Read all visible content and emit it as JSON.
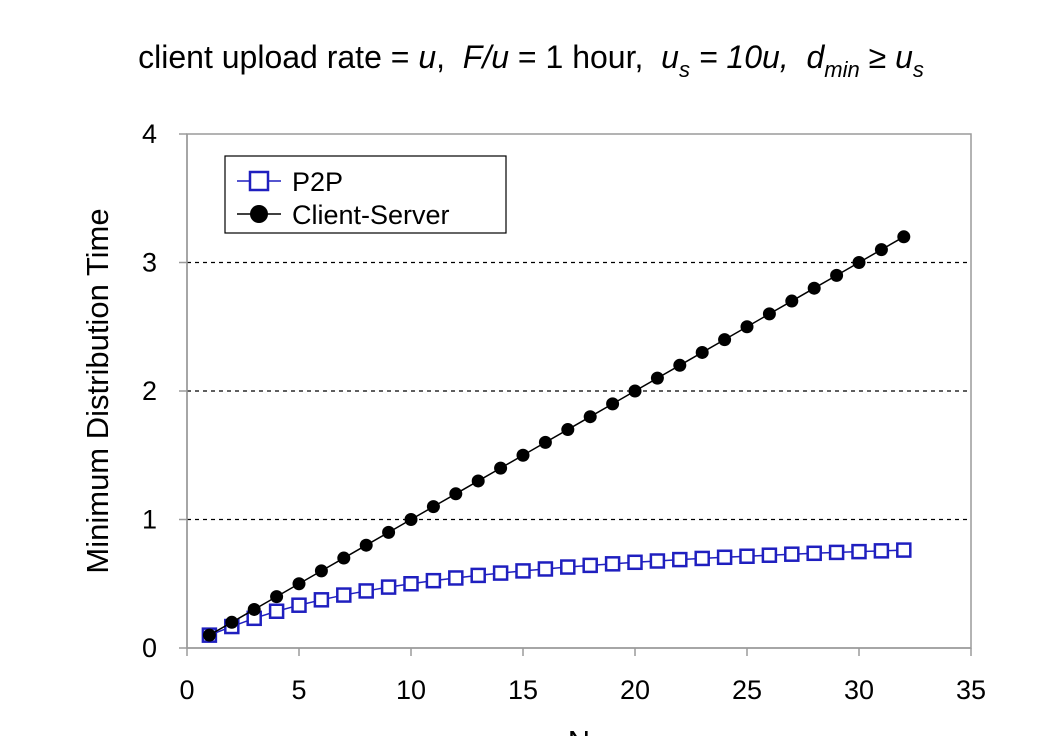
{
  "title": {
    "prefix": "client upload rate = ",
    "u": "u",
    "sep1": ",  ",
    "F_over_u": "F/u",
    "eq_one_hour": " = 1 hour,  ",
    "us_base": "u",
    "us_sub": "s",
    "us_value": " = 10u,  ",
    "dmin_base": "d",
    "dmin_sub": "min",
    "geq": " ≥ ",
    "us2_base": "u",
    "us2_sub": "s"
  },
  "chart_data": {
    "type": "scatter",
    "title": "client upload rate = u,  F/u = 1 hour,  us = 10u,  dmin ≥ us",
    "xlabel": "N",
    "ylabel": "Minimum Distribution Time",
    "xlim": [
      0,
      35
    ],
    "ylim": [
      0,
      4
    ],
    "xticks": [
      "0",
      "5",
      "10",
      "15",
      "20",
      "25",
      "30",
      "35"
    ],
    "yticks": [
      "0",
      "1",
      "2",
      "3",
      "4"
    ],
    "grid": "horizontal dashed",
    "legend": {
      "placement": "top-left",
      "entries": [
        "P2P",
        "Client-Server"
      ]
    },
    "series": [
      {
        "name": "P2P",
        "color": "#1f1fbf",
        "marker": "hollow-square",
        "x": [
          1,
          2,
          3,
          4,
          5,
          6,
          7,
          8,
          9,
          10,
          11,
          12,
          13,
          14,
          15,
          16,
          17,
          18,
          19,
          20,
          21,
          22,
          23,
          24,
          25,
          26,
          27,
          28,
          29,
          30,
          31,
          32
        ],
        "y": [
          0.1,
          0.167,
          0.231,
          0.286,
          0.333,
          0.375,
          0.412,
          0.444,
          0.474,
          0.5,
          0.524,
          0.545,
          0.565,
          0.583,
          0.6,
          0.615,
          0.63,
          0.643,
          0.655,
          0.667,
          0.677,
          0.688,
          0.697,
          0.706,
          0.714,
          0.722,
          0.73,
          0.737,
          0.744,
          0.75,
          0.756,
          0.762
        ]
      },
      {
        "name": "Client-Server",
        "color": "#000000",
        "marker": "filled-circle",
        "x": [
          1,
          2,
          3,
          4,
          5,
          6,
          7,
          8,
          9,
          10,
          11,
          12,
          13,
          14,
          15,
          16,
          17,
          18,
          19,
          20,
          21,
          22,
          23,
          24,
          25,
          26,
          27,
          28,
          29,
          30,
          31,
          32
        ],
        "y": [
          0.1,
          0.2,
          0.3,
          0.4,
          0.5,
          0.6,
          0.7,
          0.8,
          0.9,
          1.0,
          1.1,
          1.2,
          1.3,
          1.4,
          1.5,
          1.6,
          1.7,
          1.8,
          1.9,
          2.0,
          2.1,
          2.2,
          2.3,
          2.4,
          2.5,
          2.6,
          2.7,
          2.8,
          2.9,
          3.0,
          3.1,
          3.2
        ]
      }
    ]
  }
}
